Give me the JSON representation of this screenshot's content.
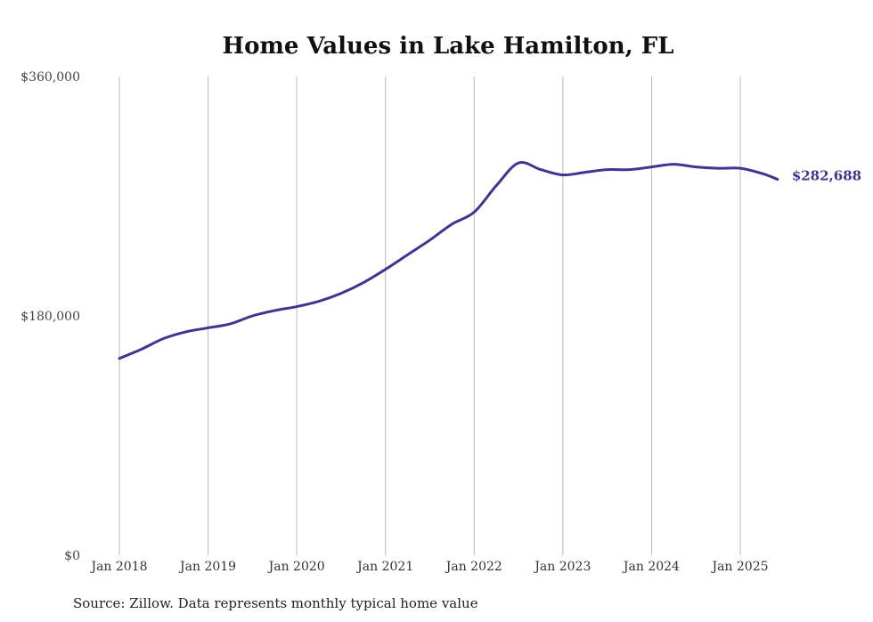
{
  "chart_data": {
    "type": "line",
    "title": "Home Values in Lake Hamilton, FL",
    "xlabel": "",
    "ylabel": "",
    "ylim": [
      0,
      360000
    ],
    "yticks": [
      {
        "value": 0,
        "label": "$0"
      },
      {
        "value": 180000,
        "label": "$180,000"
      },
      {
        "value": 360000,
        "label": "$360,000"
      }
    ],
    "xticks": [
      {
        "value": 2018.0,
        "label": "Jan 2018"
      },
      {
        "value": 2019.0,
        "label": "Jan 2019"
      },
      {
        "value": 2020.0,
        "label": "Jan 2020"
      },
      {
        "value": 2021.0,
        "label": "Jan 2021"
      },
      {
        "value": 2022.0,
        "label": "Jan 2022"
      },
      {
        "value": 2023.0,
        "label": "Jan 2023"
      },
      {
        "value": 2024.0,
        "label": "Jan 2024"
      },
      {
        "value": 2025.0,
        "label": "Jan 2025"
      }
    ],
    "grid": "vertical",
    "legend": "none",
    "series": [
      {
        "color": "#3f3590",
        "end_label": "$282,688",
        "x": [
          2018.0,
          2018.25,
          2018.5,
          2018.75,
          2019.0,
          2019.25,
          2019.5,
          2019.75,
          2020.0,
          2020.25,
          2020.5,
          2020.75,
          2021.0,
          2021.25,
          2021.5,
          2021.75,
          2022.0,
          2022.25,
          2022.5,
          2022.75,
          2023.0,
          2023.25,
          2023.5,
          2023.75,
          2024.0,
          2024.25,
          2024.5,
          2024.75,
          2025.0,
          2025.25,
          2025.42
        ],
        "y": [
          148000,
          155000,
          163000,
          168000,
          171000,
          174000,
          180000,
          184000,
          187000,
          191000,
          197000,
          205000,
          215000,
          226000,
          237000,
          249000,
          258000,
          278000,
          295000,
          290000,
          286000,
          288000,
          290000,
          290000,
          292000,
          294000,
          292000,
          291000,
          291000,
          287000,
          282688
        ]
      }
    ]
  },
  "source_note": "Source: Zillow. Data represents monthly typical home value"
}
